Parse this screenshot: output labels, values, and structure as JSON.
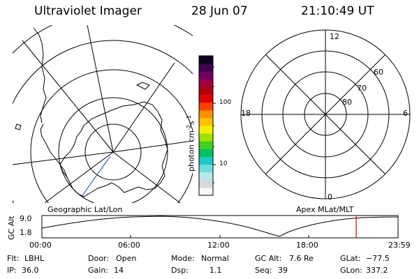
{
  "header": {
    "instrument": "Ultraviolet Imager",
    "date": "28 Jun 07",
    "time": "21:10:49 UT"
  },
  "colorbar": {
    "unit_label": "photon cm",
    "unit_exp1": "-2",
    "unit_mid": "s",
    "unit_exp2": "-1",
    "tick_labels": [
      "100",
      "10"
    ],
    "colors": [
      "#f8f8f8",
      "#d9d9d9",
      "#b8e8e8",
      "#70dcdc",
      "#20c8c8",
      "#00c060",
      "#40d020",
      "#a0e000",
      "#f0f000",
      "#ffc000",
      "#ff9000",
      "#ff4000",
      "#e00000",
      "#b00010",
      "#a00040",
      "#700060",
      "#400050",
      "#100020"
    ]
  },
  "geographic_panel": {
    "label": "Geographic Lat/Lon"
  },
  "apex_panel": {
    "label": "Apex  MLat/MLT",
    "mlt_labels": {
      "top": "12",
      "bottom": "0",
      "left": "18",
      "right": "6"
    },
    "lat_labels": [
      "60",
      "70",
      "80"
    ]
  },
  "altitude_plot": {
    "ylabel": "GC Alt",
    "y_ticks": [
      "9.0",
      "1.8"
    ],
    "x_ticks": [
      "00:00",
      "06:00",
      "12:00",
      "18:00",
      "23:59"
    ],
    "current_time_marker": "21:10",
    "marker_color": "#e00000"
  },
  "info": {
    "flt_label": "Flt:",
    "flt_value": "LBHL",
    "ip_label": "IP:",
    "ip_value": "36.0",
    "door_label": "Door:",
    "door_value": "Open",
    "gain_label": "Gain:",
    "gain_value": "14",
    "mode_label": "Mode:",
    "mode_value": "Normal",
    "dsp_label": "Dsp:",
    "dsp_value": "1.1",
    "gcalt_label": "GC Alt:",
    "gcalt_value": "7.6 Re",
    "seq_label": "Seq:",
    "seq_value": "39",
    "glat_label": "GLat:",
    "glat_value": "−77.5",
    "glon_label": "GLon:",
    "glon_value": "337.2"
  }
}
